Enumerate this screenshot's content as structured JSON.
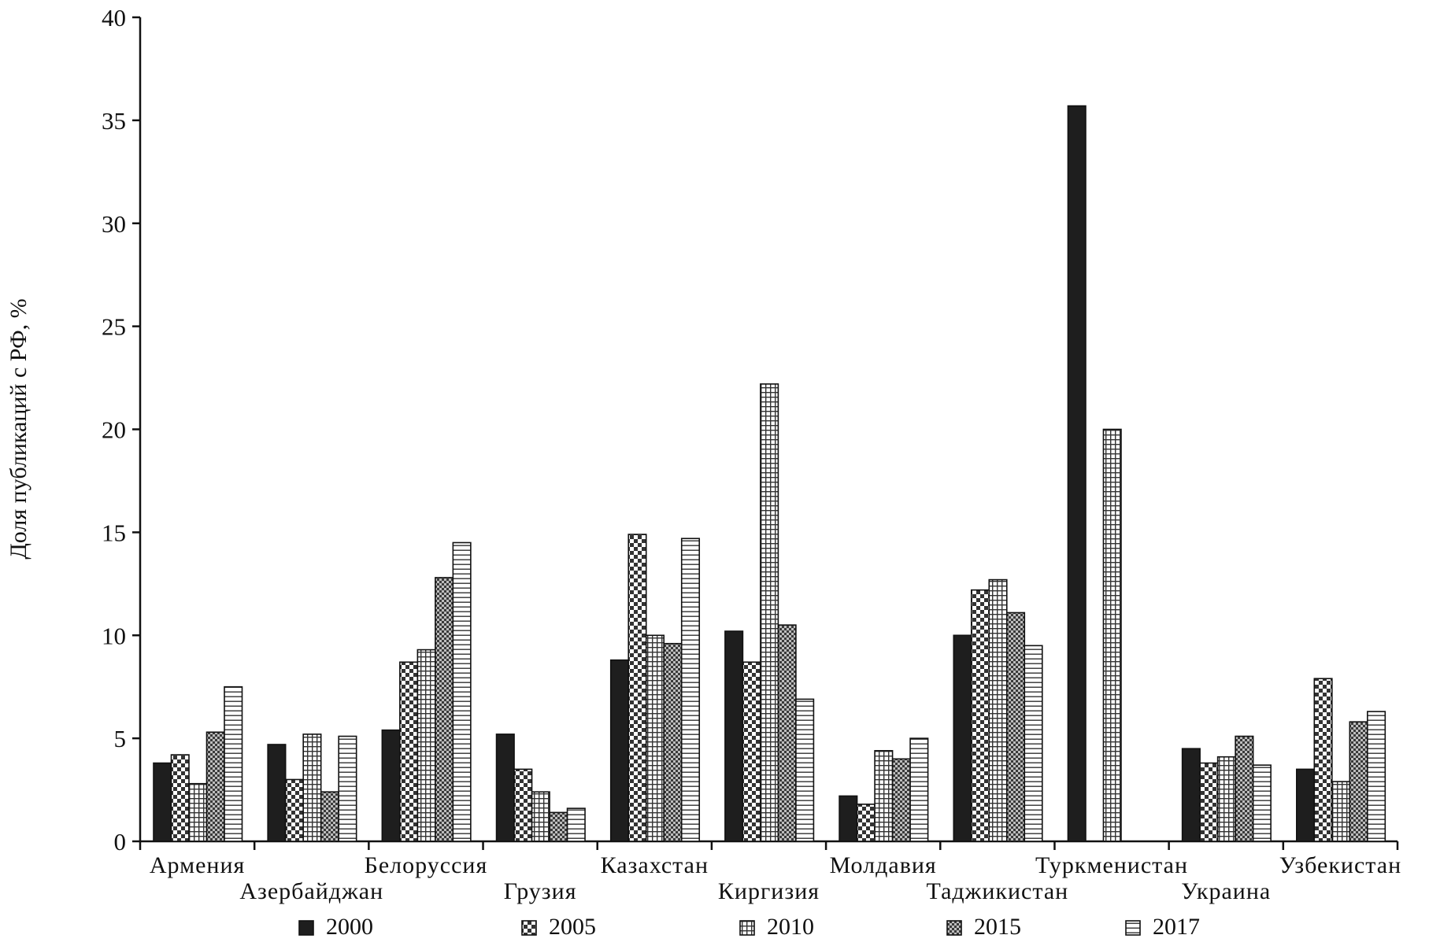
{
  "chart_data": {
    "type": "bar",
    "title": "",
    "xlabel": "",
    "ylabel": "Доля публикаций с РФ, %",
    "ylim": [
      0,
      40
    ],
    "yticks": [
      "0",
      "5",
      "10",
      "15",
      "20",
      "25",
      "30",
      "35",
      "40"
    ],
    "grid": false,
    "legend_position": "bottom",
    "categories": [
      "Армения",
      "Азербайджан",
      "Белоруссия",
      "Грузия",
      "Казахстан",
      "Киргизия",
      "Молдавия",
      "Таджикистан",
      "Туркменистан",
      "Украина",
      "Узбекистан"
    ],
    "series": [
      {
        "name": "2000",
        "pattern": "solid",
        "values": [
          3.8,
          4.7,
          5.4,
          5.2,
          8.8,
          10.2,
          2.2,
          10.0,
          35.7,
          4.5,
          3.5
        ]
      },
      {
        "name": "2005",
        "pattern": "checker",
        "values": [
          4.2,
          3.0,
          8.7,
          3.5,
          14.9,
          8.7,
          1.8,
          12.2,
          null,
          3.8,
          7.9
        ]
      },
      {
        "name": "2010",
        "pattern": "grid",
        "values": [
          2.8,
          5.2,
          9.3,
          2.4,
          10.0,
          22.2,
          4.4,
          12.7,
          20.0,
          4.1,
          2.9
        ]
      },
      {
        "name": "2015",
        "pattern": "dense-checker",
        "values": [
          5.3,
          2.4,
          12.8,
          1.4,
          9.6,
          10.5,
          4.0,
          11.1,
          null,
          5.1,
          5.8
        ]
      },
      {
        "name": "2017",
        "pattern": "horizontal-lines",
        "values": [
          7.5,
          5.1,
          14.5,
          1.6,
          14.7,
          6.9,
          5.0,
          9.5,
          null,
          3.7,
          6.3
        ]
      }
    ]
  }
}
